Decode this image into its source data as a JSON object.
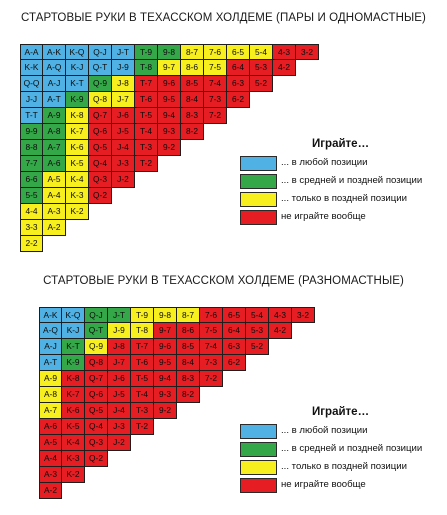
{
  "section1": {
    "title": "СТАРТОВЫЕ РУКИ В ТЕХАССКОМ ХОЛДЕМЕ (ПАРЫ И ОДНОМАСТНЫЕ)",
    "rows": [
      [
        "A-A",
        "A-K",
        "K-Q",
        "Q-J",
        "J-T",
        "T-9",
        "9-8",
        "8-7",
        "7-6",
        "6-5",
        "5-4",
        "4-3",
        "3-2"
      ],
      [
        "K-K",
        "A-Q",
        "K-J",
        "Q-T",
        "J-9",
        "T-8",
        "9-7",
        "8-6",
        "7-5",
        "6-4",
        "5-3",
        "4-2"
      ],
      [
        "Q-Q",
        "A-J",
        "K-T",
        "Q-9",
        "J-8",
        "T-7",
        "9-6",
        "8-5",
        "7-4",
        "6-3",
        "5-2"
      ],
      [
        "J-J",
        "A-T",
        "K-9",
        "Q-8",
        "J-7",
        "T-6",
        "9-5",
        "8-4",
        "7-3",
        "6-2"
      ],
      [
        "T-T",
        "A-9",
        "K-8",
        "Q-7",
        "J-6",
        "T-5",
        "9-4",
        "8-3",
        "7-2"
      ],
      [
        "9-9",
        "A-8",
        "K-7",
        "Q-6",
        "J-5",
        "T-4",
        "9-3",
        "8-2"
      ],
      [
        "8-8",
        "A-7",
        "K-6",
        "Q-5",
        "J-4",
        "T-3",
        "9-2"
      ],
      [
        "7-7",
        "A-6",
        "K-5",
        "Q-4",
        "J-3",
        "T-2"
      ],
      [
        "6-6",
        "A-5",
        "K-4",
        "Q-3",
        "J-2"
      ],
      [
        "5-5",
        "A-4",
        "K-3",
        "Q-2"
      ],
      [
        "4-4",
        "A-3",
        "K-2"
      ],
      [
        "3-3",
        "A-2"
      ],
      [
        "2-2"
      ]
    ],
    "colors": [
      [
        "b",
        "b",
        "b",
        "b",
        "b",
        "g",
        "g",
        "y",
        "y",
        "y",
        "y",
        "r",
        "r"
      ],
      [
        "b",
        "b",
        "b",
        "b",
        "b",
        "g",
        "y",
        "y",
        "y",
        "r",
        "r",
        "r"
      ],
      [
        "b",
        "b",
        "b",
        "g",
        "y",
        "r",
        "r",
        "r",
        "r",
        "r",
        "r"
      ],
      [
        "b",
        "b",
        "g",
        "y",
        "y",
        "r",
        "r",
        "r",
        "r",
        "r"
      ],
      [
        "b",
        "g",
        "y",
        "r",
        "r",
        "r",
        "r",
        "r",
        "r"
      ],
      [
        "g",
        "g",
        "y",
        "r",
        "r",
        "r",
        "r",
        "r"
      ],
      [
        "g",
        "g",
        "y",
        "r",
        "r",
        "r",
        "r"
      ],
      [
        "g",
        "g",
        "y",
        "r",
        "r",
        "r"
      ],
      [
        "g",
        "y",
        "y",
        "r",
        "r"
      ],
      [
        "g",
        "y",
        "y",
        "r"
      ],
      [
        "y",
        "y",
        "y"
      ],
      [
        "y",
        "y"
      ],
      [
        "y"
      ]
    ],
    "legend": {
      "heading": "Играйте…",
      "items": [
        {
          "color": "#4fb1e4",
          "text": "... в любой позиции"
        },
        {
          "color": "#34a849",
          "text": "... в средней и поздней позиции"
        },
        {
          "color": "#f8ef1f",
          "text": "... только в поздней позиции"
        },
        {
          "color": "#e61d23",
          "text": "не играйте вообще"
        }
      ]
    }
  },
  "section2": {
    "title": "СТАРТОВЫЕ РУКИ В ТЕХАССКОМ ХОЛДЕМЕ (РАЗНОМАСТНЫЕ)",
    "rows": [
      [
        "A-K",
        "K-Q",
        "Q-J",
        "J-T",
        "T-9",
        "9-8",
        "8-7",
        "7-6",
        "6-5",
        "5-4",
        "4-3",
        "3-2"
      ],
      [
        "A-Q",
        "K-J",
        "Q-T",
        "J-9",
        "T-8",
        "9-7",
        "8-6",
        "7-5",
        "6-4",
        "5-3",
        "4-2"
      ],
      [
        "A-J",
        "K-T",
        "Q-9",
        "J-8",
        "T-7",
        "9-6",
        "8-5",
        "7-4",
        "6-3",
        "5-2"
      ],
      [
        "A-T",
        "K-9",
        "Q-8",
        "J-7",
        "T-6",
        "9-5",
        "8-4",
        "7-3",
        "6-2"
      ],
      [
        "A-9",
        "K-8",
        "Q-7",
        "J-6",
        "T-5",
        "9-4",
        "8-3",
        "7-2"
      ],
      [
        "A-8",
        "K-7",
        "Q-6",
        "J-5",
        "T-4",
        "9-3",
        "8-2"
      ],
      [
        "A-7",
        "K-6",
        "Q-5",
        "J-4",
        "T-3",
        "9-2"
      ],
      [
        "A-6",
        "K-5",
        "Q-4",
        "J-3",
        "T-2"
      ],
      [
        "A-5",
        "K-4",
        "Q-3",
        "J-2"
      ],
      [
        "A-4",
        "K-3",
        "Q-2"
      ],
      [
        "A-3",
        "K-2"
      ],
      [
        "A-2"
      ]
    ],
    "colors": [
      [
        "b",
        "b",
        "g",
        "g",
        "y",
        "y",
        "y",
        "r",
        "r",
        "r",
        "r",
        "r"
      ],
      [
        "b",
        "b",
        "g",
        "y",
        "y",
        "r",
        "r",
        "r",
        "r",
        "r",
        "r"
      ],
      [
        "b",
        "g",
        "y",
        "r",
        "r",
        "r",
        "r",
        "r",
        "r",
        "r"
      ],
      [
        "b",
        "g",
        "r",
        "r",
        "r",
        "r",
        "r",
        "r",
        "r"
      ],
      [
        "y",
        "r",
        "r",
        "r",
        "r",
        "r",
        "r",
        "r"
      ],
      [
        "y",
        "r",
        "r",
        "r",
        "r",
        "r",
        "r"
      ],
      [
        "y",
        "r",
        "r",
        "r",
        "r",
        "r"
      ],
      [
        "r",
        "r",
        "r",
        "r",
        "r"
      ],
      [
        "r",
        "r",
        "r",
        "r"
      ],
      [
        "r",
        "r",
        "r"
      ],
      [
        "r",
        "r"
      ],
      [
        "r"
      ]
    ],
    "legend": {
      "heading": "Играйте…",
      "items": [
        {
          "color": "#4fb1e4",
          "text": "... в любой позиции"
        },
        {
          "color": "#34a849",
          "text": "... в средней и поздней позиции"
        },
        {
          "color": "#f8ef1f",
          "text": "... только в поздней позиции"
        },
        {
          "color": "#e61d23",
          "text": "не играйте вообще"
        }
      ]
    }
  }
}
